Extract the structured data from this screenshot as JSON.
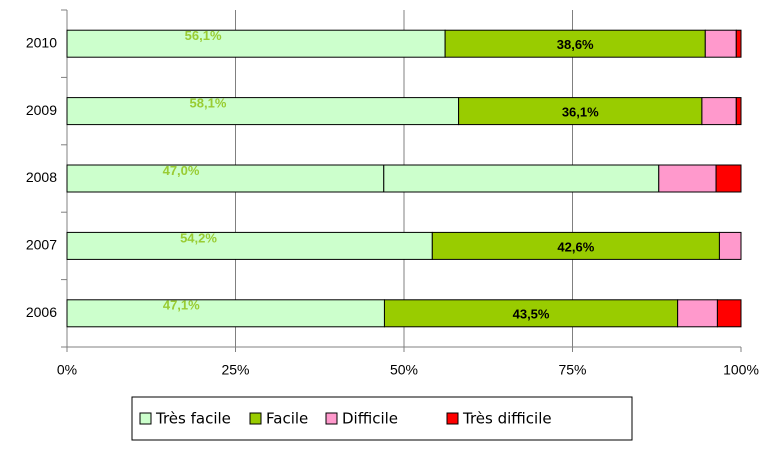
{
  "chart_data": {
    "type": "stacked_bar_horizontal",
    "categories": [
      "2010",
      "2009",
      "2008",
      "2007",
      "2006"
    ],
    "series": [
      {
        "name": "Très facile",
        "color": "#ccffcc",
        "label_color": "#99cc33",
        "values": [
          56.1,
          58.1,
          47.0,
          54.2,
          47.1
        ],
        "value_labels": [
          "56,1%",
          "58,1%",
          "47,0%",
          "54,2%",
          "47,1%"
        ]
      },
      {
        "name": "Facile",
        "color": "#99cc00",
        "colors": [
          "#99cc00",
          "#99cc00",
          "#ccffcc",
          "#99cc00",
          "#99cc00"
        ],
        "label_color": "#000000",
        "values": [
          38.6,
          36.1,
          40.8,
          42.6,
          43.5
        ],
        "value_labels": [
          "38,6%",
          "36,1%",
          null,
          "42,6%",
          "43,5%"
        ]
      },
      {
        "name": "Difficile",
        "color": "#ff99cc",
        "values": [
          4.6,
          5.1,
          8.5,
          3.2,
          5.9
        ]
      },
      {
        "name": "Très difficile",
        "color": "#ff0000",
        "values": [
          0.7,
          0.7,
          3.7,
          0,
          3.5
        ]
      }
    ],
    "xlim": [
      0,
      100
    ],
    "xticks": [
      {
        "value": 0,
        "label": "0%"
      },
      {
        "value": 25,
        "label": "25%"
      },
      {
        "value": 50,
        "label": "50%"
      },
      {
        "value": 75,
        "label": "75%"
      },
      {
        "value": 100,
        "label": "100%"
      }
    ],
    "grid": true
  }
}
